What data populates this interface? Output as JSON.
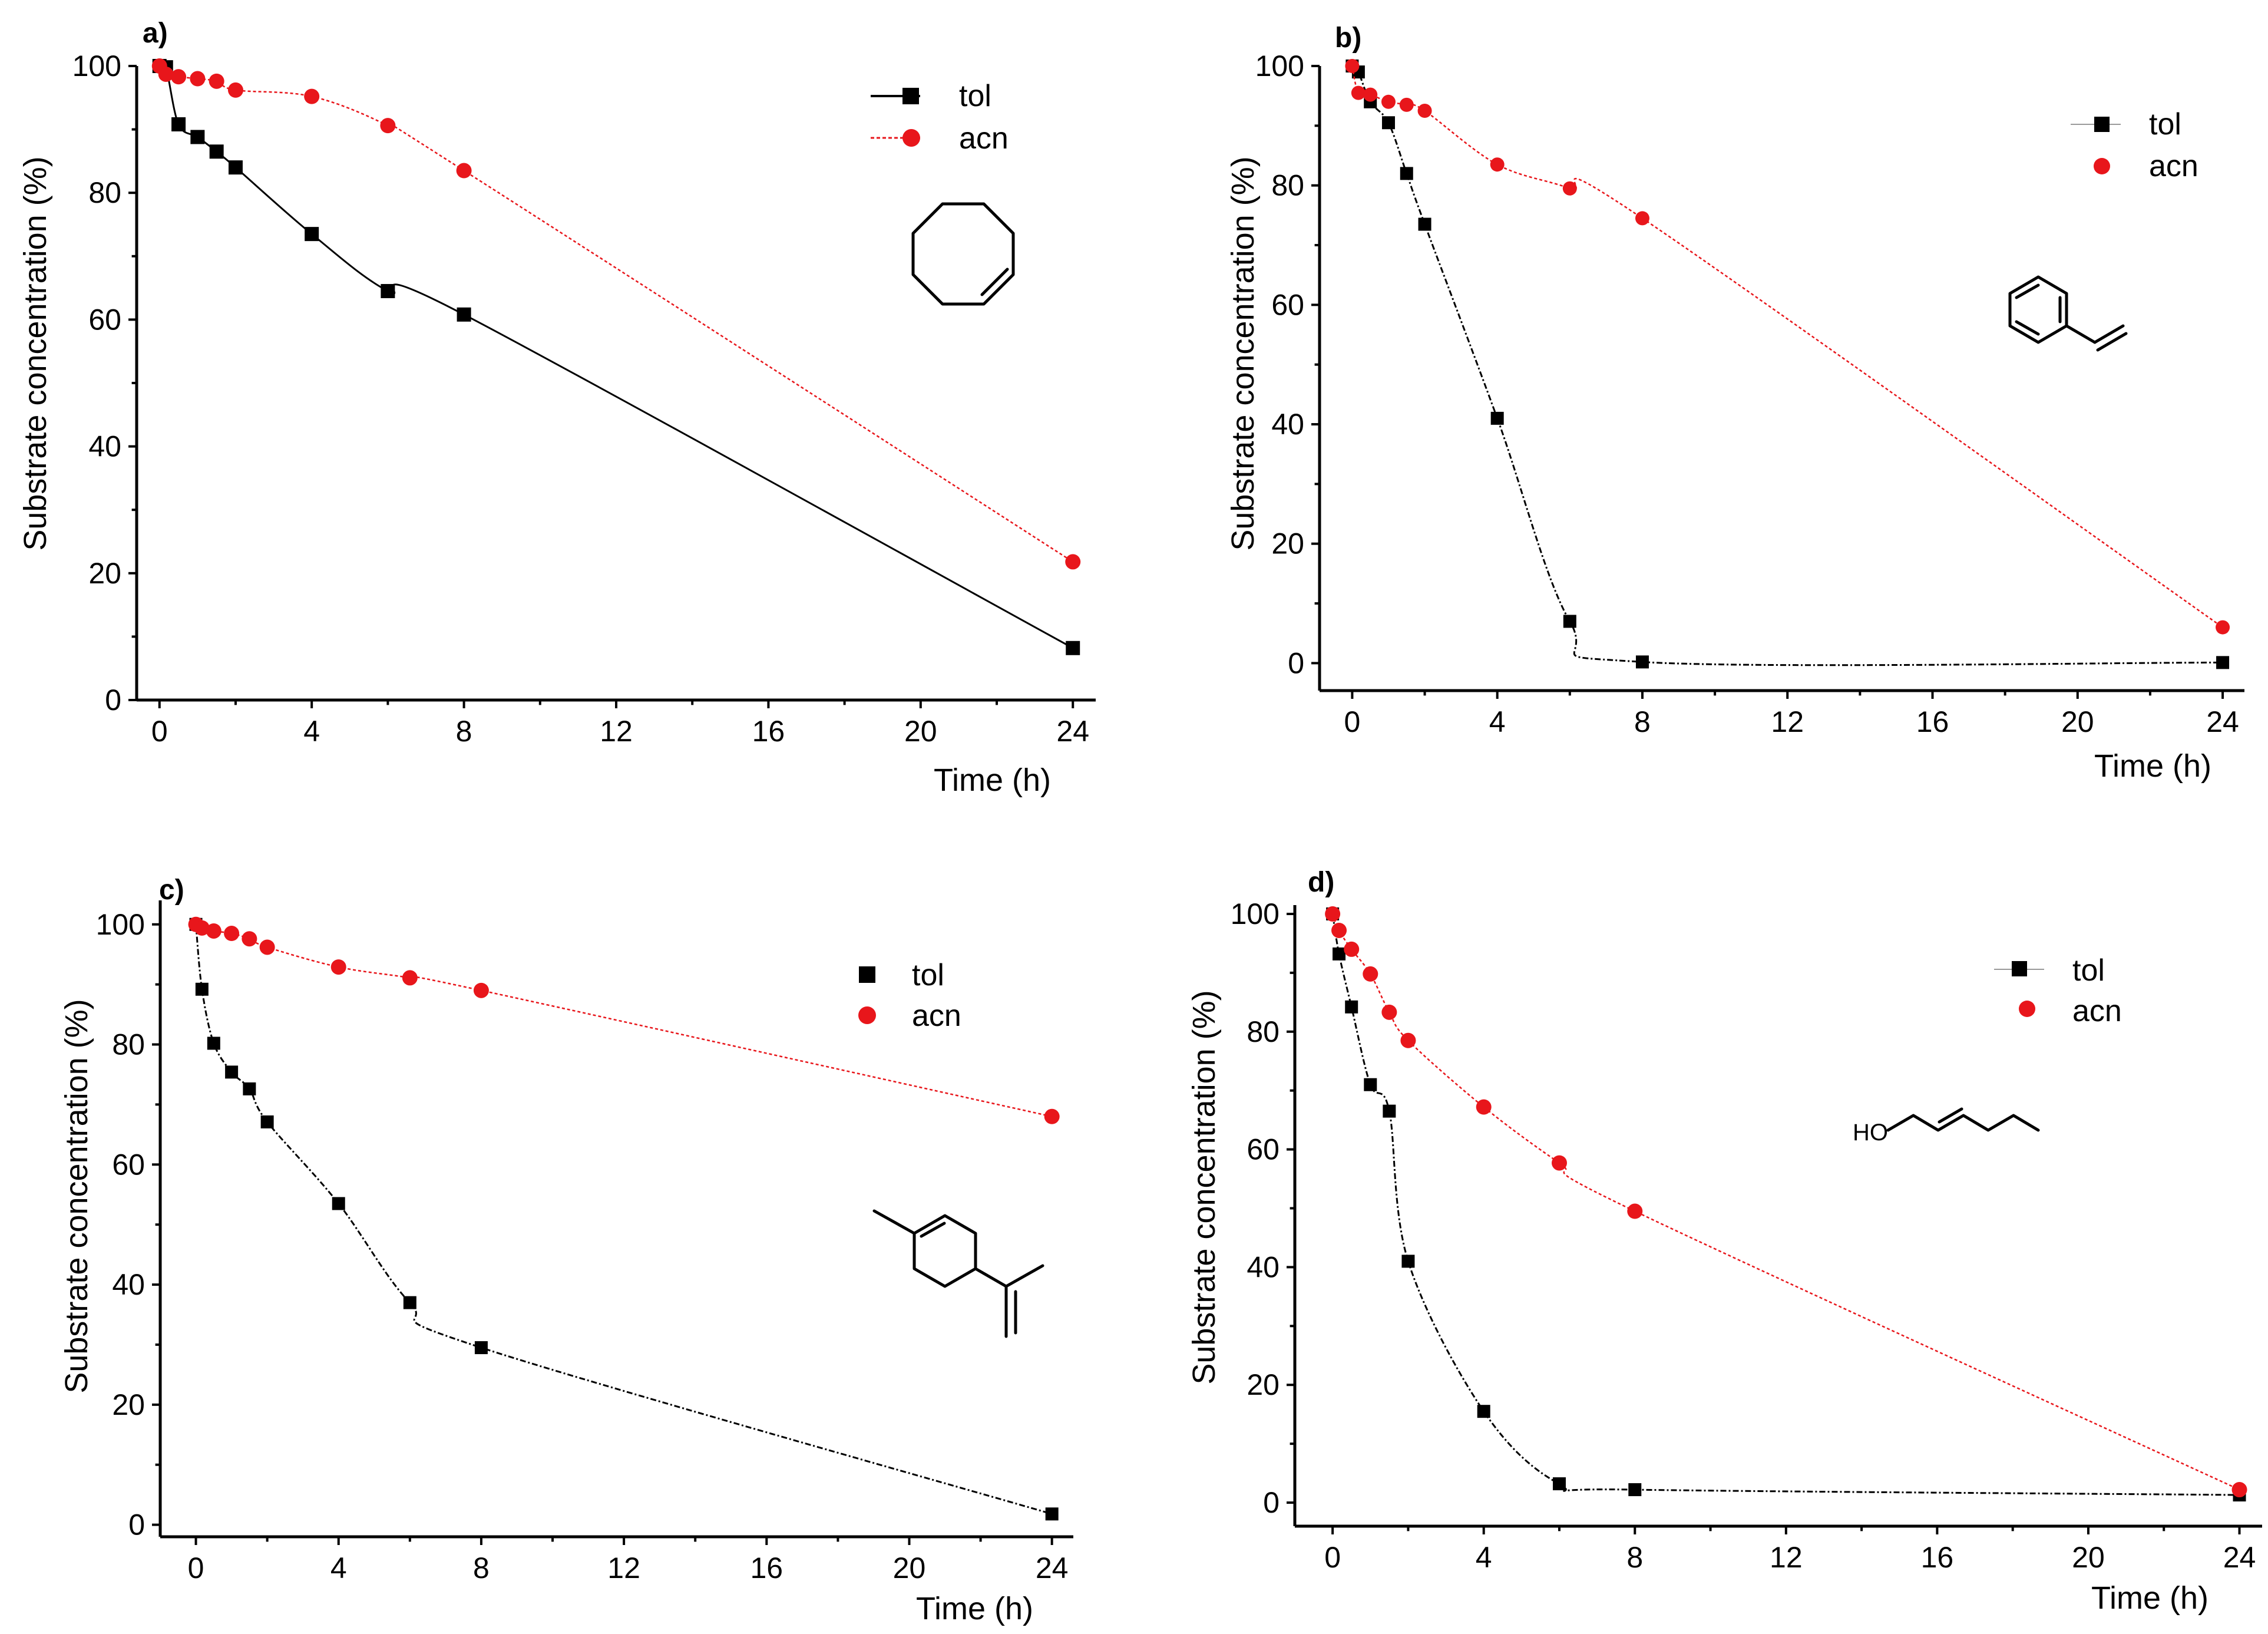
{
  "colors": {
    "tol": "#000000",
    "acn": "#e8161b",
    "tol_line": "#000000",
    "acn_line": "#e8161b"
  },
  "chart_data": [
    {
      "panel": "a)",
      "type": "line",
      "xlabel": "Time (h)",
      "ylabel": "Substrate concentration (%)",
      "xlim": [
        -0.6,
        24.6
      ],
      "ylim": [
        0,
        100
      ],
      "xticks": [
        0,
        4,
        8,
        12,
        16,
        20,
        24
      ],
      "yticks": [
        0,
        20,
        40,
        60,
        80,
        100
      ],
      "legend": {
        "position": "top-right",
        "entries": [
          "tol",
          "acn"
        ]
      },
      "molecule": "cyclooctene",
      "series": [
        {
          "name": "tol",
          "x": [
            0,
            0.17,
            0.5,
            1,
            1.5,
            2,
            4,
            6,
            8,
            24
          ],
          "y": [
            100,
            99.8,
            90.8,
            88.8,
            86.5,
            84,
            73.5,
            64.5,
            60.8,
            8.2
          ]
        },
        {
          "name": "acn",
          "x": [
            0,
            0.17,
            0.5,
            1,
            1.5,
            2,
            4,
            6,
            8,
            24
          ],
          "y": [
            100,
            98.7,
            98.3,
            98,
            97.6,
            96.2,
            95.2,
            90.6,
            83.5,
            21.8
          ]
        }
      ]
    },
    {
      "panel": "b)",
      "type": "line",
      "xlabel": "Time (h)",
      "ylabel": "Substrate concentration (%)",
      "xlim": [
        -0.9,
        24.6
      ],
      "ylim": [
        -4.6,
        100
      ],
      "xticks": [
        0,
        4,
        8,
        12,
        16,
        20,
        24
      ],
      "yticks": [
        0,
        20,
        40,
        60,
        80,
        100
      ],
      "legend": {
        "position": "top-right",
        "entries": [
          "tol",
          "acn"
        ]
      },
      "molecule": "styrene",
      "series": [
        {
          "name": "tol",
          "x": [
            0,
            0.17,
            0.5,
            1,
            1.5,
            2,
            4,
            6,
            8,
            24
          ],
          "y": [
            100,
            99,
            94,
            90.5,
            82,
            73.5,
            41,
            7,
            0.2,
            0.1
          ]
        },
        {
          "name": "acn",
          "x": [
            0,
            0.17,
            0.5,
            1,
            1.5,
            2,
            4,
            6,
            8,
            24
          ],
          "y": [
            100,
            95.5,
            95.2,
            94,
            93.5,
            92.5,
            83.5,
            79.5,
            74.5,
            6
          ]
        }
      ]
    },
    {
      "panel": "c)",
      "type": "line",
      "xlabel": "Time (h)",
      "ylabel": "Substrate concentration (%)",
      "xlim": [
        -1,
        24.6
      ],
      "ylim": [
        -2,
        104
      ],
      "xticks": [
        0,
        4,
        8,
        12,
        16,
        20,
        24
      ],
      "yticks": [
        0,
        20,
        40,
        60,
        80,
        100
      ],
      "legend": {
        "position": "top-right",
        "entries": [
          "tol",
          "acn"
        ]
      },
      "molecule": "limonene",
      "series": [
        {
          "name": "tol",
          "x": [
            0,
            0.17,
            0.5,
            1,
            1.5,
            2,
            4,
            6,
            8,
            24
          ],
          "y": [
            100,
            89.2,
            80.2,
            75.4,
            72.6,
            67.1,
            53.5,
            37,
            29.5,
            1.8
          ]
        },
        {
          "name": "acn",
          "x": [
            0,
            0.17,
            0.5,
            1,
            1.5,
            2,
            4,
            6,
            8,
            24
          ],
          "y": [
            100,
            99.4,
            98.9,
            98.5,
            97.6,
            96.2,
            92.9,
            91.1,
            89,
            68
          ]
        }
      ]
    },
    {
      "panel": "d)",
      "type": "line",
      "xlabel": "Time (h)",
      "ylabel": "Substrate concentration (%)",
      "xlim": [
        -1,
        24.6
      ],
      "ylim": [
        -4,
        101.5
      ],
      "xticks": [
        0,
        4,
        8,
        12,
        16,
        20,
        24
      ],
      "yticks": [
        0,
        20,
        40,
        60,
        80,
        100
      ],
      "legend": {
        "position": "top-right",
        "entries": [
          "tol",
          "acn"
        ]
      },
      "molecule": "trans-2-hexen-1-ol",
      "molecule_label": "HO",
      "series": [
        {
          "name": "tol",
          "x": [
            0,
            0.17,
            0.5,
            1,
            1.5,
            2,
            4,
            6,
            8,
            24
          ],
          "y": [
            100,
            93.2,
            84.2,
            71,
            66.5,
            41,
            15.5,
            3.2,
            2.2,
            1.3
          ]
        },
        {
          "name": "acn",
          "x": [
            0,
            0.17,
            0.5,
            1,
            1.5,
            2,
            4,
            6,
            8,
            24
          ],
          "y": [
            100,
            97.2,
            94,
            89.8,
            83.3,
            78.5,
            67.2,
            57.7,
            49.5,
            2.2
          ]
        }
      ]
    }
  ]
}
